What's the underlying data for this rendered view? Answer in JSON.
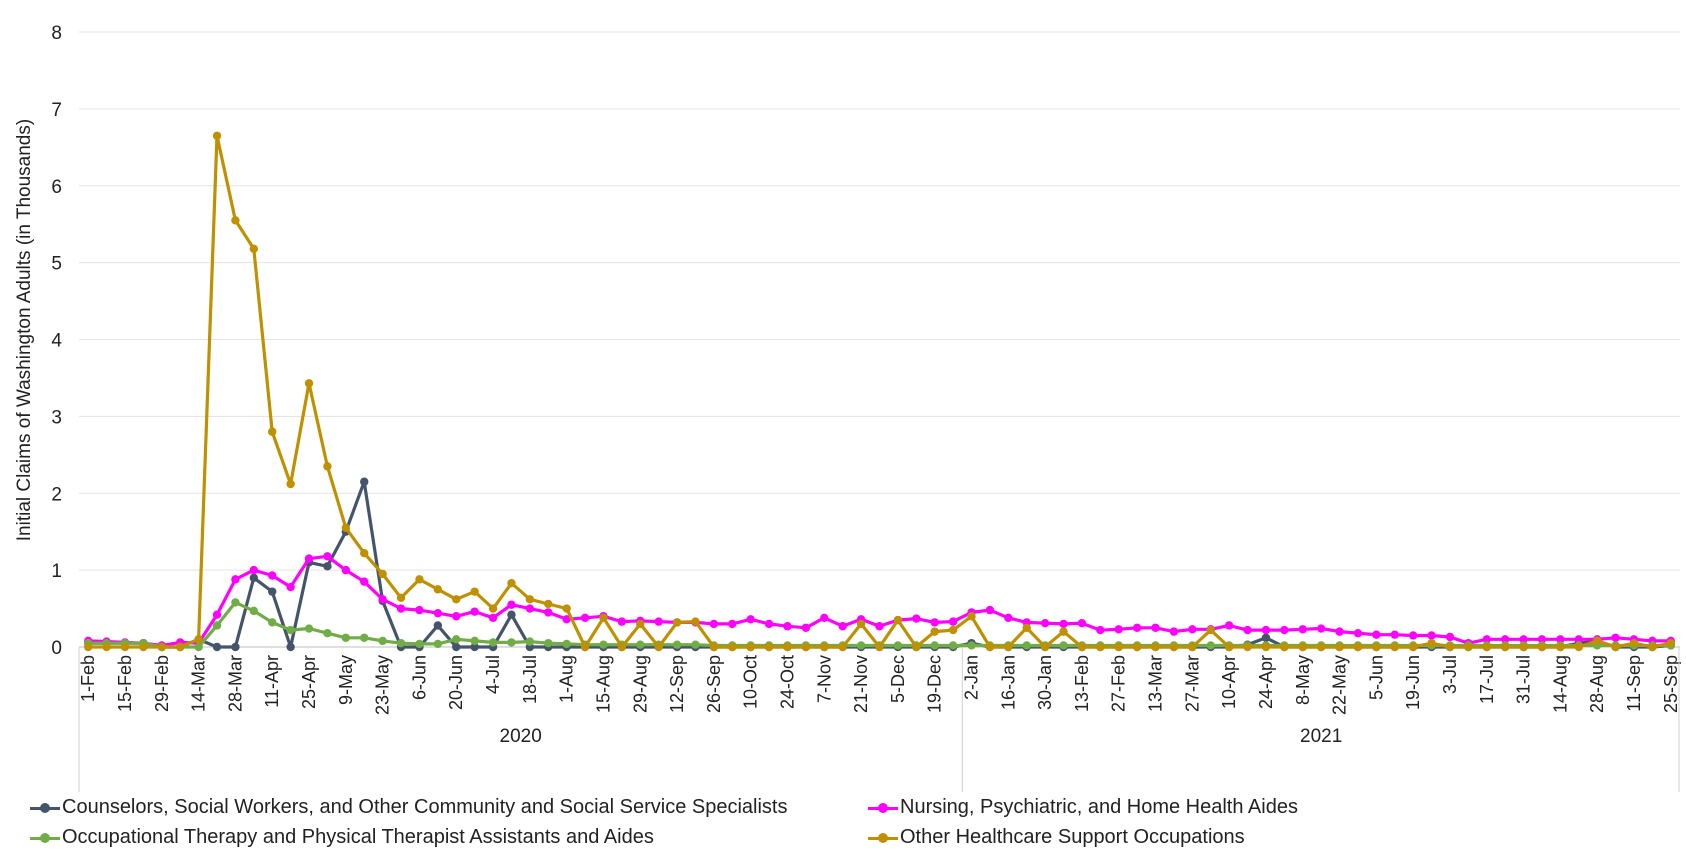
{
  "chart_data": {
    "type": "line",
    "title": "",
    "ylabel": "Initial Claims of Washington Adults (in Thousands)",
    "xlabel": "",
    "ylim": [
      0,
      8
    ],
    "yticks": [
      "0",
      "1",
      "2",
      "3",
      "4",
      "5",
      "6",
      "7",
      "8"
    ],
    "grid": true,
    "legend_position": "bottom",
    "x_tick_labels": [
      "1-Feb",
      "15-Feb",
      "29-Feb",
      "14-Mar",
      "28-Mar",
      "11-Apr",
      "25-Apr",
      "9-May",
      "23-May",
      "6-Jun",
      "20-Jun",
      "4-Jul",
      "18-Jul",
      "1-Aug",
      "15-Aug",
      "29-Aug",
      "12-Sep",
      "26-Sep",
      "10-Oct",
      "24-Oct",
      "7-Nov",
      "21-Nov",
      "5-Dec",
      "19-Dec",
      "2-Jan",
      "16-Jan",
      "30-Jan",
      "13-Feb",
      "27-Feb",
      "13-Mar",
      "27-Mar",
      "10-Apr",
      "24-Apr",
      "8-May",
      "22-May",
      "5-Jun",
      "19-Jun",
      "3-Jul",
      "17-Jul",
      "31-Jul",
      "14-Aug",
      "28-Aug",
      "11-Sep",
      "25-Sep"
    ],
    "year_groups": [
      {
        "label": "2020",
        "start_index": 0,
        "end_index": 47
      },
      {
        "label": "2021",
        "start_index": 48,
        "end_index": 86
      }
    ],
    "series": [
      {
        "name": "Counselors, Social Workers, and Other Community and Social Service Specialists",
        "color": "#44546a",
        "values": [
          0.05,
          0.05,
          0.05,
          0.05,
          0,
          0,
          0.1,
          0,
          0,
          0.9,
          0.72,
          0,
          1.1,
          1.05,
          1.5,
          2.15,
          0.6,
          0,
          0,
          0.28,
          0,
          0,
          0,
          0.42,
          0,
          0,
          0,
          0,
          0,
          0,
          0,
          0,
          0,
          0,
          0,
          0,
          0,
          0,
          0,
          0,
          0,
          0,
          0,
          0,
          0,
          0,
          0,
          0,
          0.05,
          0,
          0,
          0,
          0,
          0,
          0,
          0,
          0,
          0,
          0,
          0,
          0,
          0,
          0,
          0.03,
          0.12,
          0,
          0,
          0,
          0,
          0,
          0,
          0,
          0,
          0,
          0,
          0,
          0,
          0,
          0,
          0,
          0,
          0.05,
          0.08,
          0,
          0,
          0,
          0.02
        ]
      },
      {
        "name": "Nursing, Psychiatric, and Home Health Aides",
        "color": "#ff00ff",
        "values": [
          0.08,
          0.07,
          0.06,
          0.05,
          0.02,
          0.06,
          0.05,
          0.42,
          0.88,
          1.0,
          0.93,
          0.78,
          1.15,
          1.18,
          1.0,
          0.85,
          0.62,
          0.5,
          0.48,
          0.44,
          0.4,
          0.46,
          0.38,
          0.55,
          0.5,
          0.45,
          0.36,
          0.38,
          0.4,
          0.33,
          0.34,
          0.33,
          0.32,
          0.32,
          0.3,
          0.3,
          0.36,
          0.3,
          0.27,
          0.25,
          0.38,
          0.27,
          0.36,
          0.27,
          0.35,
          0.37,
          0.32,
          0.33,
          0.45,
          0.48,
          0.38,
          0.32,
          0.31,
          0.3,
          0.31,
          0.22,
          0.23,
          0.25,
          0.25,
          0.2,
          0.23,
          0.23,
          0.28,
          0.22,
          0.22,
          0.22,
          0.23,
          0.24,
          0.2,
          0.18,
          0.16,
          0.16,
          0.15,
          0.15,
          0.13,
          0.05,
          0.1,
          0.1,
          0.1,
          0.1,
          0.1,
          0.1,
          0.1,
          0.12,
          0.1,
          0.08,
          0.08
        ]
      },
      {
        "name": "Occupational Therapy and Physical Therapist Assistants and Aides",
        "color": "#70ad47",
        "values": [
          0.05,
          0.05,
          0.05,
          0.05,
          0,
          0,
          0,
          0.28,
          0.58,
          0.47,
          0.32,
          0.22,
          0.24,
          0.18,
          0.12,
          0.12,
          0.08,
          0.05,
          0.04,
          0.04,
          0.1,
          0.08,
          0.06,
          0.06,
          0.07,
          0.05,
          0.04,
          0.03,
          0.03,
          0.03,
          0.03,
          0.03,
          0.03,
          0.03,
          0.02,
          0.02,
          0.02,
          0.02,
          0.02,
          0.02,
          0.02,
          0.02,
          0.02,
          0.02,
          0.02,
          0.02,
          0.02,
          0.02,
          0.02,
          0.02,
          0.02,
          0.02,
          0.02,
          0.02,
          0.02,
          0.02,
          0.02,
          0.02,
          0.02,
          0.02,
          0.02,
          0.02,
          0.02,
          0.02,
          0.02,
          0.02,
          0.02,
          0.02,
          0.02,
          0.02,
          0.02,
          0.02,
          0.02,
          0.02,
          0.02,
          0.02,
          0.02,
          0.02,
          0.02,
          0.02,
          0.02,
          0.02,
          0.02,
          0.02,
          0.02,
          0.02,
          0.02
        ]
      },
      {
        "name": "Other Healthcare Support Occupations",
        "color": "#bf9000",
        "values": [
          0,
          0,
          0,
          0,
          0,
          0,
          0.1,
          6.65,
          5.55,
          5.18,
          2.8,
          2.12,
          3.43,
          2.35,
          1.55,
          1.22,
          0.95,
          0.64,
          0.88,
          0.75,
          0.62,
          0.72,
          0.5,
          0.83,
          0.62,
          0.56,
          0.5,
          0,
          0.38,
          0,
          0.3,
          0,
          0.32,
          0.33,
          0,
          0,
          0,
          0,
          0,
          0,
          0,
          0,
          0.3,
          0,
          0.35,
          0,
          0.2,
          0.22,
          0.4,
          0,
          0,
          0.25,
          0,
          0.2,
          0,
          0,
          0,
          0,
          0,
          0,
          0,
          0.22,
          0,
          0,
          0,
          0,
          0,
          0,
          0,
          0,
          0,
          0,
          0,
          0.05,
          0,
          0,
          0,
          0,
          0,
          0,
          0,
          0,
          0.08,
          0,
          0.05,
          0,
          0.05
        ]
      }
    ]
  }
}
